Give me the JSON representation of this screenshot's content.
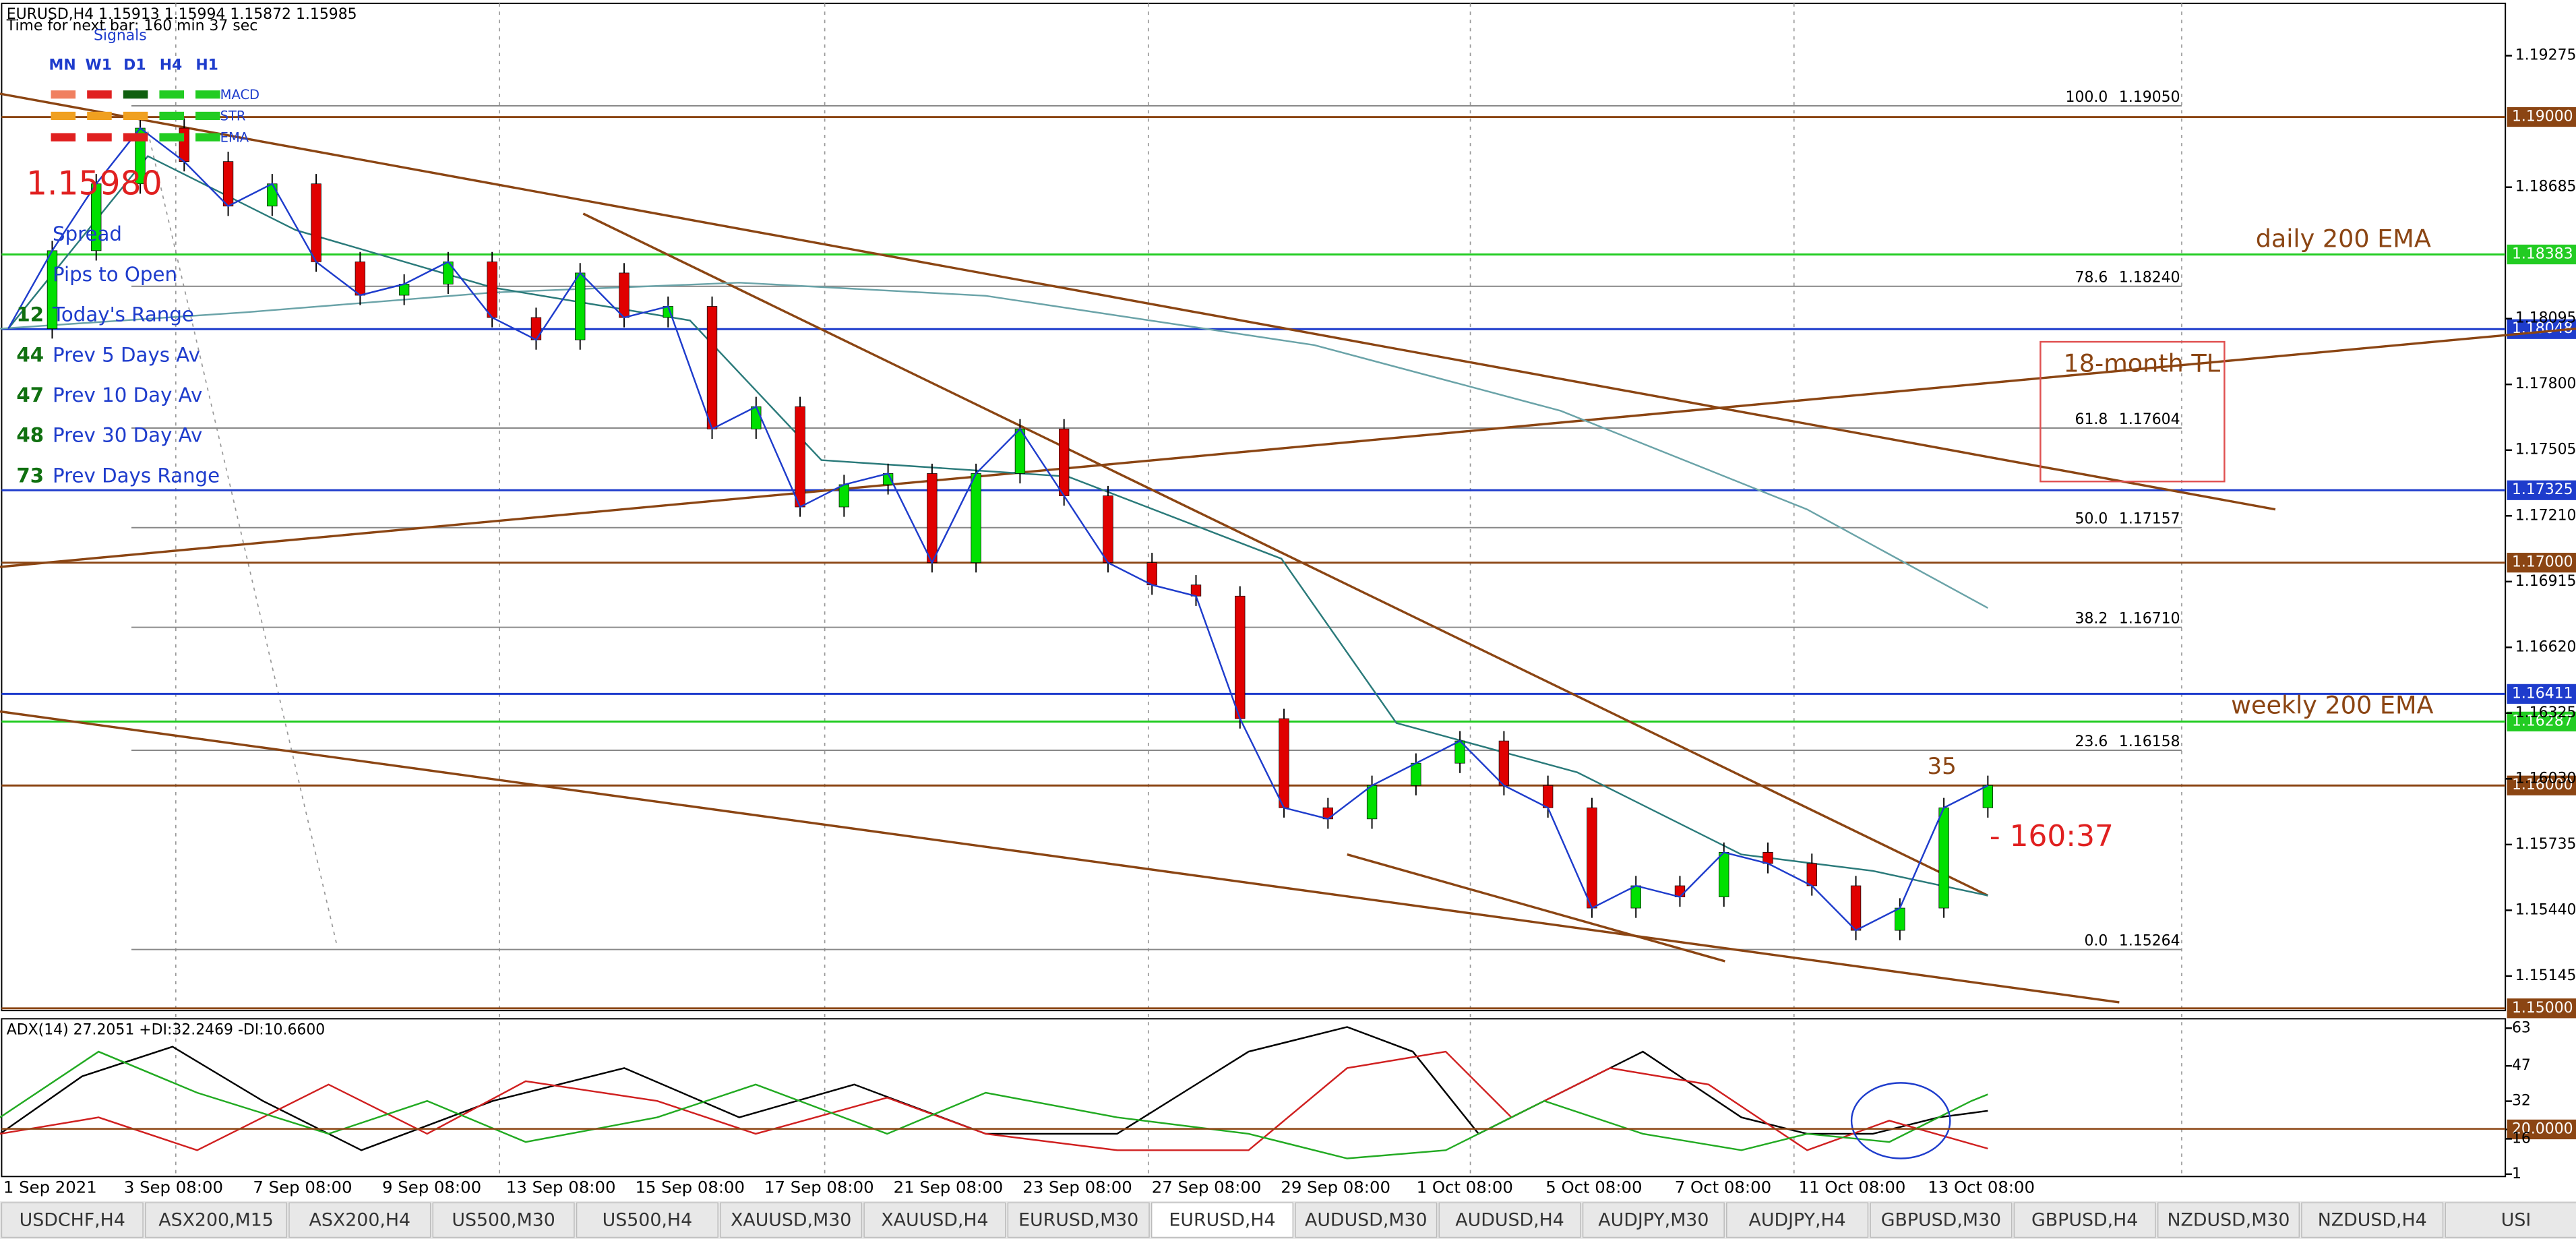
{
  "header": {
    "symbol_line": "EURUSD,H4  1.15913 1.15994 1.15872 1.15985",
    "timer": "Time for next bar: 160 min 37 sec"
  },
  "signals": {
    "title": "Signals",
    "timeframes": [
      "MN",
      "W1",
      "D1",
      "H4",
      "H1"
    ],
    "rows": [
      "MACD",
      "STR",
      "EMA"
    ]
  },
  "price_big": "1.15980",
  "stats": [
    {
      "label": "Spread"
    },
    {
      "label": "Pips to Open"
    },
    {
      "value": "12",
      "label": "Today's Range"
    },
    {
      "value": "44",
      "label": "Prev 5 Days Av"
    },
    {
      "value": "47",
      "label": "Prev 10 Day Av"
    },
    {
      "value": "48",
      "label": "Prev 30 Day Av"
    },
    {
      "value": "73",
      "label": "Prev Days Range"
    }
  ],
  "fib": [
    {
      "level": "100.0",
      "price": {
        "value": 1.1905,
        "label": "1.19050"
      }
    },
    {
      "level": "78.6",
      "price": {
        "value": 1.1824,
        "label": "1.18240"
      }
    },
    {
      "level": "61.8",
      "price": 1.17604
    },
    {
      "level": "50.0",
      "price": 1.17157
    },
    {
      "level": "38.2",
      "price": {
        "value": 1.1671,
        "label": "1.16710"
      }
    },
    {
      "level": "23.6",
      "price": 1.16158
    },
    {
      "level": "0.0",
      "price": 1.15264
    }
  ],
  "annotations": {
    "daily": "daily 200 EMA",
    "tl": "18-month TL",
    "weekly": "weekly 200 EMA",
    "pips": "35",
    "countdown": "- 160:37"
  },
  "price_axis": {
    "ylim": [
      1.1499,
      1.1951
    ],
    "ticks": [
      1.19275,
      1.18685,
      1.18095,
      {
        "value": 1.178,
        "label": "1.17800"
      },
      1.17505,
      {
        "value": 1.1721,
        "label": "1.17210"
      },
      1.16915,
      {
        "value": 1.1662,
        "label": "1.16620"
      },
      1.16325,
      {
        "value": 1.1603,
        "label": "1.16030"
      },
      1.15735,
      {
        "value": 1.1544,
        "label": "1.15440"
      },
      1.15145
    ]
  },
  "levels": [
    {
      "value": 1.19,
      "label": "1.19000",
      "color": "#8b4513"
    },
    {
      "value": 1.18383,
      "label": "1.18383",
      "color": "#22cc22"
    },
    {
      "value": 1.18048,
      "label": "1.18048",
      "color": "#1e3ccc"
    },
    {
      "value": 1.17325,
      "label": "1.17325",
      "color": "#1e3ccc"
    },
    {
      "value": 1.17,
      "label": "1.17000",
      "color": "#8b4513"
    },
    {
      "value": 1.16411,
      "label": "1.16411",
      "color": "#1e3ccc"
    },
    {
      "value": 1.16287,
      "label": "1.16287",
      "color": "#22cc22"
    },
    {
      "value": 1.16,
      "label": "1.16000",
      "color": "#8b4513"
    },
    {
      "value": 1.15,
      "label": "1.15000",
      "color": "#8b4513"
    }
  ],
  "candles": {
    "closes": [
      1.1805,
      1.184,
      1.187,
      1.1895,
      1.188,
      1.186,
      1.187,
      1.1835,
      1.182,
      1.1825,
      1.1835,
      1.181,
      1.18,
      1.183,
      1.181,
      1.1815,
      1.176,
      1.177,
      1.1725,
      1.1735,
      1.174,
      1.17,
      1.174,
      1.176,
      1.173,
      1.17,
      1.169,
      1.1685,
      1.163,
      1.159,
      1.1585,
      1.16,
      1.161,
      1.162,
      1.16,
      1.159,
      1.1545,
      1.1555,
      1.155,
      1.157,
      1.1565,
      1.1555,
      1.1535,
      1.1545,
      1.159,
      1.16
    ]
  },
  "adx": {
    "label": "ADX(14) 27.2051 +DI:32.2469 -DI:10.6600",
    "ylim": [
      0,
      67
    ],
    "ticks": [
      63,
      47,
      32,
      {
        "value": 20,
        "label": "20.0000"
      },
      16,
      1
    ]
  },
  "time_axis": [
    "1 Sep 2021",
    "3 Sep 08:00",
    "7 Sep 08:00",
    "9 Sep 08:00",
    "13 Sep 08:00",
    "15 Sep 08:00",
    "17 Sep 08:00",
    "21 Sep 08:00",
    "23 Sep 08:00",
    "27 Sep 08:00",
    "29 Sep 08:00",
    "1 Oct 08:00",
    "5 Oct 08:00",
    "7 Oct 08:00",
    "11 Oct 08:00",
    "13 Oct 08:00"
  ],
  "tabs": [
    "USDCHF,H4",
    "ASX200,M15",
    "ASX200,H4",
    "US500,M30",
    "US500,H4",
    "XAUUSD,M30",
    "XAUUSD,H4",
    "EURUSD,M30",
    "EURUSD,H4",
    "AUDUSD,M30",
    "AUDUSD,H4",
    "AUDJPY,M30",
    "AUDJPY,H4",
    "GBPUSD,M30",
    "GBPUSD,H4",
    "NZDUSD,M30",
    "NZDUSD,H4",
    "USI"
  ]
}
